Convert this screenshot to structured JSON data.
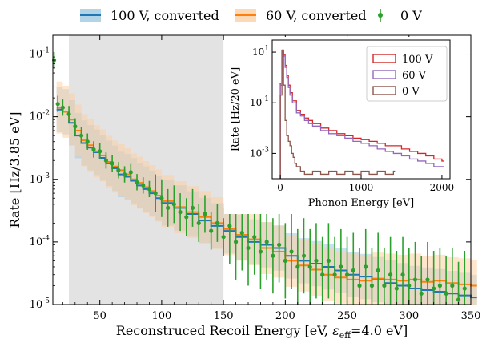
{
  "chart_data": [
    {
      "type": "line",
      "xlabel": "Reconstruced Recoil Energy [eV, ",
      "xlabel_eps": "ε",
      "xlabel_sub": "eff",
      "xlabel_tail": "=4.0 eV]",
      "ylabel": "Rate [Hz/3.85 eV]",
      "xlim": [
        12,
        350
      ],
      "ylim": [
        1e-05,
        0.2
      ],
      "yscale": "log",
      "xticks": [
        50,
        100,
        150,
        200,
        250,
        300,
        350
      ],
      "yticks": [
        {
          "base": "10",
          "exp": "-5",
          "value": 1e-05
        },
        {
          "base": "10",
          "exp": "-4",
          "value": 0.0001
        },
        {
          "base": "10",
          "exp": "-3",
          "value": 0.001
        },
        {
          "base": "10",
          "exp": "-2",
          "value": 0.01
        },
        {
          "base": "10",
          "exp": "-1",
          "value": 0.1
        }
      ],
      "shaded_region": [
        25,
        150
      ],
      "legend_position": "top",
      "legend": [
        "100 V, converted",
        "60 V, converted",
        "0 V"
      ],
      "series": [
        {
          "name": "100 V, converted",
          "color": "#1f77b4",
          "band_color": "#9ecae1",
          "style": "step",
          "points": [
            [
              15,
              0.013
            ],
            [
              20,
              0.012
            ],
            [
              25,
              0.008
            ],
            [
              30,
              0.005
            ],
            [
              35,
              0.0038
            ],
            [
              40,
              0.0032
            ],
            [
              45,
              0.0027
            ],
            [
              50,
              0.0022
            ],
            [
              55,
              0.0018
            ],
            [
              60,
              0.0015
            ],
            [
              65,
              0.0012
            ],
            [
              70,
              0.0011
            ],
            [
              75,
              0.00095
            ],
            [
              80,
              0.0008
            ],
            [
              85,
              0.0007
            ],
            [
              90,
              0.0006
            ],
            [
              95,
              0.0005
            ],
            [
              100,
              0.00042
            ],
            [
              110,
              0.00035
            ],
            [
              120,
              0.00028
            ],
            [
              130,
              0.00022
            ],
            [
              140,
              0.00018
            ],
            [
              150,
              0.00015
            ],
            [
              160,
              0.00012
            ],
            [
              170,
              0.0001
            ],
            [
              180,
              9e-05
            ],
            [
              190,
              8e-05
            ],
            [
              200,
              6e-05
            ],
            [
              210,
              5e-05
            ],
            [
              220,
              4.5e-05
            ],
            [
              230,
              4e-05
            ],
            [
              240,
              3.5e-05
            ],
            [
              250,
              3e-05
            ],
            [
              260,
              2.8e-05
            ],
            [
              270,
              2.5e-05
            ],
            [
              280,
              2.2e-05
            ],
            [
              290,
              2e-05
            ],
            [
              300,
              1.8e-05
            ],
            [
              310,
              1.7e-05
            ],
            [
              320,
              1.6e-05
            ],
            [
              330,
              1.5e-05
            ],
            [
              340,
              1.4e-05
            ],
            [
              350,
              1.3e-05
            ]
          ]
        },
        {
          "name": "60 V, converted",
          "color": "#ff7f0e",
          "band_color": "#fdd0a2",
          "style": "step",
          "points": [
            [
              15,
              0.014
            ],
            [
              20,
              0.012
            ],
            [
              25,
              0.009
            ],
            [
              30,
              0.006
            ],
            [
              35,
              0.0042
            ],
            [
              40,
              0.0035
            ],
            [
              45,
              0.0028
            ],
            [
              50,
              0.0024
            ],
            [
              55,
              0.0019
            ],
            [
              60,
              0.0016
            ],
            [
              65,
              0.0014
            ],
            [
              70,
              0.0012
            ],
            [
              75,
              0.001
            ],
            [
              80,
              0.00088
            ],
            [
              85,
              0.00075
            ],
            [
              90,
              0.00065
            ],
            [
              95,
              0.00055
            ],
            [
              100,
              0.00045
            ],
            [
              110,
              0.00036
            ],
            [
              120,
              0.0003
            ],
            [
              130,
              0.00025
            ],
            [
              140,
              0.0002
            ],
            [
              150,
              0.00016
            ],
            [
              160,
              0.00013
            ],
            [
              170,
              0.00011
            ],
            [
              180,
              8e-05
            ],
            [
              190,
              7e-05
            ],
            [
              200,
              5e-05
            ],
            [
              210,
              4.2e-05
            ],
            [
              220,
              3.6e-05
            ],
            [
              230,
              3e-05
            ],
            [
              240,
              2.7e-05
            ],
            [
              250,
              2.5e-05
            ],
            [
              260,
              2.4e-05
            ],
            [
              270,
              2.6e-05
            ],
            [
              280,
              2.5e-05
            ],
            [
              290,
              2.4e-05
            ],
            [
              300,
              2.5e-05
            ],
            [
              310,
              2.3e-05
            ],
            [
              320,
              2.4e-05
            ],
            [
              330,
              2.2e-05
            ],
            [
              340,
              2.1e-05
            ],
            [
              350,
              2e-05
            ]
          ]
        },
        {
          "name": "0 V",
          "color": "#2ca02c",
          "style": "errorbar",
          "points": [
            [
              13,
              0.08
            ],
            [
              16,
              0.016
            ],
            [
              20,
              0.014
            ],
            [
              25,
              0.011
            ],
            [
              30,
              0.007
            ],
            [
              35,
              0.005
            ],
            [
              40,
              0.004
            ],
            [
              45,
              0.003
            ],
            [
              50,
              0.0028
            ],
            [
              55,
              0.002
            ],
            [
              60,
              0.0018
            ],
            [
              65,
              0.0014
            ],
            [
              70,
              0.0012
            ],
            [
              75,
              0.0013
            ],
            [
              80,
              0.0009
            ],
            [
              85,
              0.0008
            ],
            [
              90,
              0.0007
            ],
            [
              95,
              0.0006
            ],
            [
              100,
              0.0005
            ],
            [
              105,
              0.00035
            ],
            [
              110,
              0.0004
            ],
            [
              115,
              0.0003
            ],
            [
              120,
              0.00025
            ],
            [
              125,
              0.00035
            ],
            [
              130,
              0.0002
            ],
            [
              135,
              0.00028
            ],
            [
              140,
              0.00015
            ],
            [
              145,
              0.0002
            ],
            [
              150,
              0.00012
            ],
            [
              155,
              0.00018
            ],
            [
              160,
              0.0001
            ],
            [
              165,
              0.00014
            ],
            [
              170,
              8e-05
            ],
            [
              175,
              0.00012
            ],
            [
              180,
              7e-05
            ],
            [
              185,
              0.0001
            ],
            [
              190,
              6e-05
            ],
            [
              195,
              9e-05
            ],
            [
              200,
              5e-05
            ],
            [
              205,
              7e-05
            ],
            [
              210,
              4e-05
            ],
            [
              215,
              6e-05
            ],
            [
              220,
              4e-05
            ],
            [
              225,
              5e-05
            ],
            [
              230,
              3e-05
            ],
            [
              235,
              5e-05
            ],
            [
              240,
              3e-05
            ],
            [
              245,
              4e-05
            ],
            [
              250,
              3e-05
            ],
            [
              255,
              3.5e-05
            ],
            [
              260,
              2e-05
            ],
            [
              265,
              4e-05
            ],
            [
              270,
              2e-05
            ],
            [
              275,
              3.5e-05
            ],
            [
              280,
              2e-05
            ],
            [
              285,
              3e-05
            ],
            [
              290,
              1.8e-05
            ],
            [
              295,
              3e-05
            ],
            [
              300,
              2e-05
            ],
            [
              305,
              2.5e-05
            ],
            [
              310,
              1.5e-05
            ],
            [
              315,
              2.5e-05
            ],
            [
              320,
              1.8e-05
            ],
            [
              325,
              2e-05
            ],
            [
              330,
              1.5e-05
            ],
            [
              335,
              2e-05
            ],
            [
              340,
              1.2e-05
            ],
            [
              345,
              1.8e-05
            ]
          ]
        }
      ]
    },
    {
      "type": "line",
      "xlabel": "Phonon Energy [eV]",
      "ylabel": "Rate [Hz/20 eV]",
      "xlim": [
        -100,
        2100
      ],
      "ylim": [
        0.0001,
        30
      ],
      "yscale": "log",
      "xticks": [
        0,
        1000,
        2000
      ],
      "yticks": [
        {
          "base": "10",
          "exp": "-3",
          "value": 0.001
        },
        {
          "base": "10",
          "exp": "-1",
          "value": 0.1
        },
        {
          "base": "10",
          "exp": "1",
          "value": 10
        }
      ],
      "legend_position": "top-right",
      "legend": [
        "100 V",
        "60 V",
        "0 V"
      ],
      "series": [
        {
          "name": "100 V",
          "color": "#d62728",
          "points": [
            [
              0,
              0.6
            ],
            [
              20,
              12
            ],
            [
              40,
              8
            ],
            [
              60,
              3
            ],
            [
              80,
              1.2
            ],
            [
              100,
              0.5
            ],
            [
              120,
              0.25
            ],
            [
              150,
              0.12
            ],
            [
              200,
              0.05
            ],
            [
              250,
              0.035
            ],
            [
              300,
              0.025
            ],
            [
              350,
              0.02
            ],
            [
              400,
              0.015
            ],
            [
              500,
              0.01
            ],
            [
              600,
              0.008
            ],
            [
              700,
              0.006
            ],
            [
              800,
              0.005
            ],
            [
              900,
              0.004
            ],
            [
              1000,
              0.0035
            ],
            [
              1100,
              0.003
            ],
            [
              1200,
              0.0025
            ],
            [
              1300,
              0.002
            ],
            [
              1400,
              0.002
            ],
            [
              1500,
              0.0015
            ],
            [
              1600,
              0.0012
            ],
            [
              1700,
              0.001
            ],
            [
              1800,
              0.0008
            ],
            [
              1900,
              0.0006
            ],
            [
              2000,
              0.0005
            ]
          ]
        },
        {
          "name": "60 V",
          "color": "#9467bd",
          "points": [
            [
              0,
              0.5
            ],
            [
              20,
              10
            ],
            [
              40,
              7
            ],
            [
              60,
              2.5
            ],
            [
              80,
              1
            ],
            [
              100,
              0.4
            ],
            [
              120,
              0.2
            ],
            [
              150,
              0.1
            ],
            [
              200,
              0.04
            ],
            [
              250,
              0.03
            ],
            [
              300,
              0.02
            ],
            [
              350,
              0.015
            ],
            [
              400,
              0.012
            ],
            [
              500,
              0.008
            ],
            [
              600,
              0.006
            ],
            [
              700,
              0.005
            ],
            [
              800,
              0.004
            ],
            [
              900,
              0.003
            ],
            [
              1000,
              0.0025
            ],
            [
              1100,
              0.002
            ],
            [
              1200,
              0.0015
            ],
            [
              1300,
              0.0012
            ],
            [
              1400,
              0.001
            ],
            [
              1500,
              0.0008
            ],
            [
              1600,
              0.0006
            ],
            [
              1700,
              0.0005
            ],
            [
              1800,
              0.0004
            ],
            [
              1900,
              0.0003
            ],
            [
              2000,
              0.0003
            ]
          ]
        },
        {
          "name": "0 V",
          "color": "#8c564b",
          "points": [
            [
              0,
              0.2
            ],
            [
              20,
              12
            ],
            [
              40,
              0.5
            ],
            [
              60,
              0.02
            ],
            [
              80,
              0.005
            ],
            [
              100,
              0.003
            ],
            [
              120,
              0.002
            ],
            [
              140,
              0.001
            ],
            [
              160,
              0.0007
            ],
            [
              180,
              0.0004
            ],
            [
              200,
              0.0003
            ],
            [
              250,
              0.0002
            ],
            [
              300,
              0.00015
            ],
            [
              400,
              0.0002
            ],
            [
              500,
              0.00015
            ],
            [
              600,
              0.0002
            ],
            [
              700,
              0.00015
            ],
            [
              800,
              0.0002
            ],
            [
              900,
              0.00015
            ],
            [
              1000,
              0.0002
            ],
            [
              1100,
              0.00015
            ],
            [
              1200,
              0.0002
            ],
            [
              1300,
              0.00015
            ],
            [
              1400,
              0.0002
            ]
          ]
        }
      ]
    }
  ]
}
